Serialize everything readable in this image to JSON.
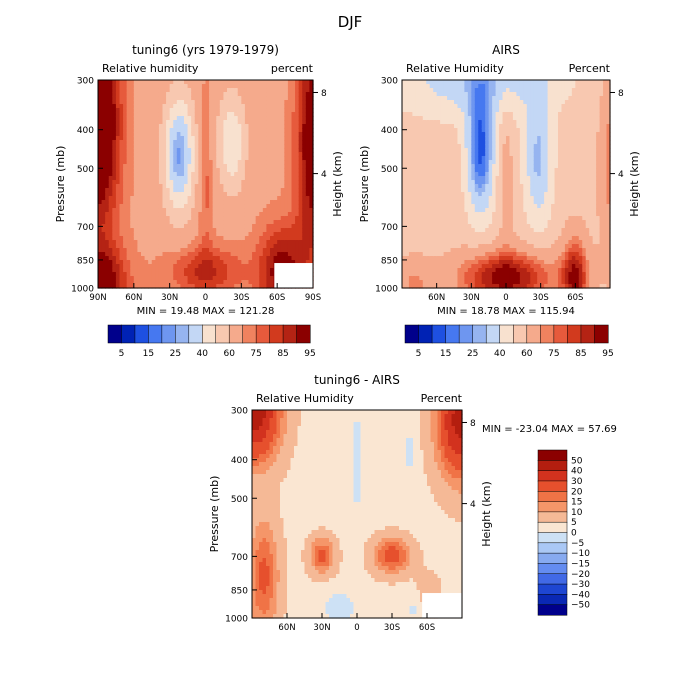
{
  "figure": {
    "title": "DJF"
  },
  "chart_data": [
    {
      "type": "heatmap",
      "title": "tuning6 (yrs 1979-1979)",
      "subtitle_left": "Relative humidity",
      "subtitle_right": "percent",
      "ylabel": "Pressure (mb)",
      "ylabel_right": "Height (km)",
      "x_ticks": [
        "90N",
        "60N",
        "30N",
        "0",
        "30S",
        "60S",
        "90S"
      ],
      "y_ticks": [
        "300",
        "400",
        "500",
        "700",
        "850",
        "1000"
      ],
      "height_ticks": [
        "8",
        "4"
      ],
      "xlim": [
        "90N",
        "90S"
      ],
      "ylim": [
        1000,
        300
      ],
      "yscale": "log",
      "stats_text": "MIN =  19.48   MAX = 121.28",
      "min": 19.48,
      "max": 121.28,
      "field": "model"
    },
    {
      "type": "heatmap",
      "title": "AIRS",
      "subtitle_left": "Relative Humidity",
      "subtitle_right": "Percent",
      "ylabel": "Pressure (mb)",
      "ylabel_right": "Height (km)",
      "x_ticks": [
        "60N",
        "30N",
        "0",
        "30S",
        "60S"
      ],
      "y_ticks": [
        "300",
        "400",
        "500",
        "700",
        "850",
        "1000"
      ],
      "height_ticks": [
        "8",
        "4"
      ],
      "ylim": [
        1000,
        300
      ],
      "yscale": "log",
      "stats_text": "MIN =  18.78   MAX = 115.94",
      "min": 18.78,
      "max": 115.94,
      "field": "obs"
    },
    {
      "type": "heatmap",
      "title": "tuning6 - AIRS",
      "subtitle_left": "Relative Humidity",
      "subtitle_right": "Percent",
      "ylabel": "Pressure (mb)",
      "ylabel_right": "Height (km)",
      "x_ticks": [
        "60N",
        "30N",
        "0",
        "30S",
        "60S"
      ],
      "y_ticks": [
        "300",
        "400",
        "500",
        "700",
        "850",
        "1000"
      ],
      "height_ticks": [
        "8",
        "4"
      ],
      "ylim": [
        1000,
        300
      ],
      "yscale": "log",
      "stats_text": "MIN = -23.04   MAX =  57.69",
      "min": -23.04,
      "max": 57.69,
      "field": "diff"
    }
  ],
  "colorbars": {
    "absolute": {
      "colors": [
        "#00008b",
        "#0022b4",
        "#1e50e1",
        "#4678f0",
        "#6e96f0",
        "#96b4f0",
        "#c3d7f5",
        "#f8e1cf",
        "#f8c8b0",
        "#f5aa8c",
        "#f0825f",
        "#e65a3c",
        "#d23a1e",
        "#b42314",
        "#8b0000"
      ],
      "labels": [
        "5",
        "15",
        "25",
        "40",
        "60",
        "75",
        "85",
        "95"
      ]
    },
    "difference": {
      "colors": [
        "#8b0000",
        "#b41e0f",
        "#d2321e",
        "#e6502d",
        "#f07346",
        "#f59669",
        "#f5b996",
        "#fae6d2",
        "#cde1f5",
        "#aac8f5",
        "#87aaf0",
        "#648cf0",
        "#4169e6",
        "#1e46d2",
        "#0a28b4",
        "#00008b"
      ],
      "labels": [
        "50",
        "40",
        "30",
        "20",
        "15",
        "10",
        "5",
        "0",
        "−5",
        "−10",
        "−15",
        "−20",
        "−30",
        "−40",
        "−50"
      ]
    }
  }
}
